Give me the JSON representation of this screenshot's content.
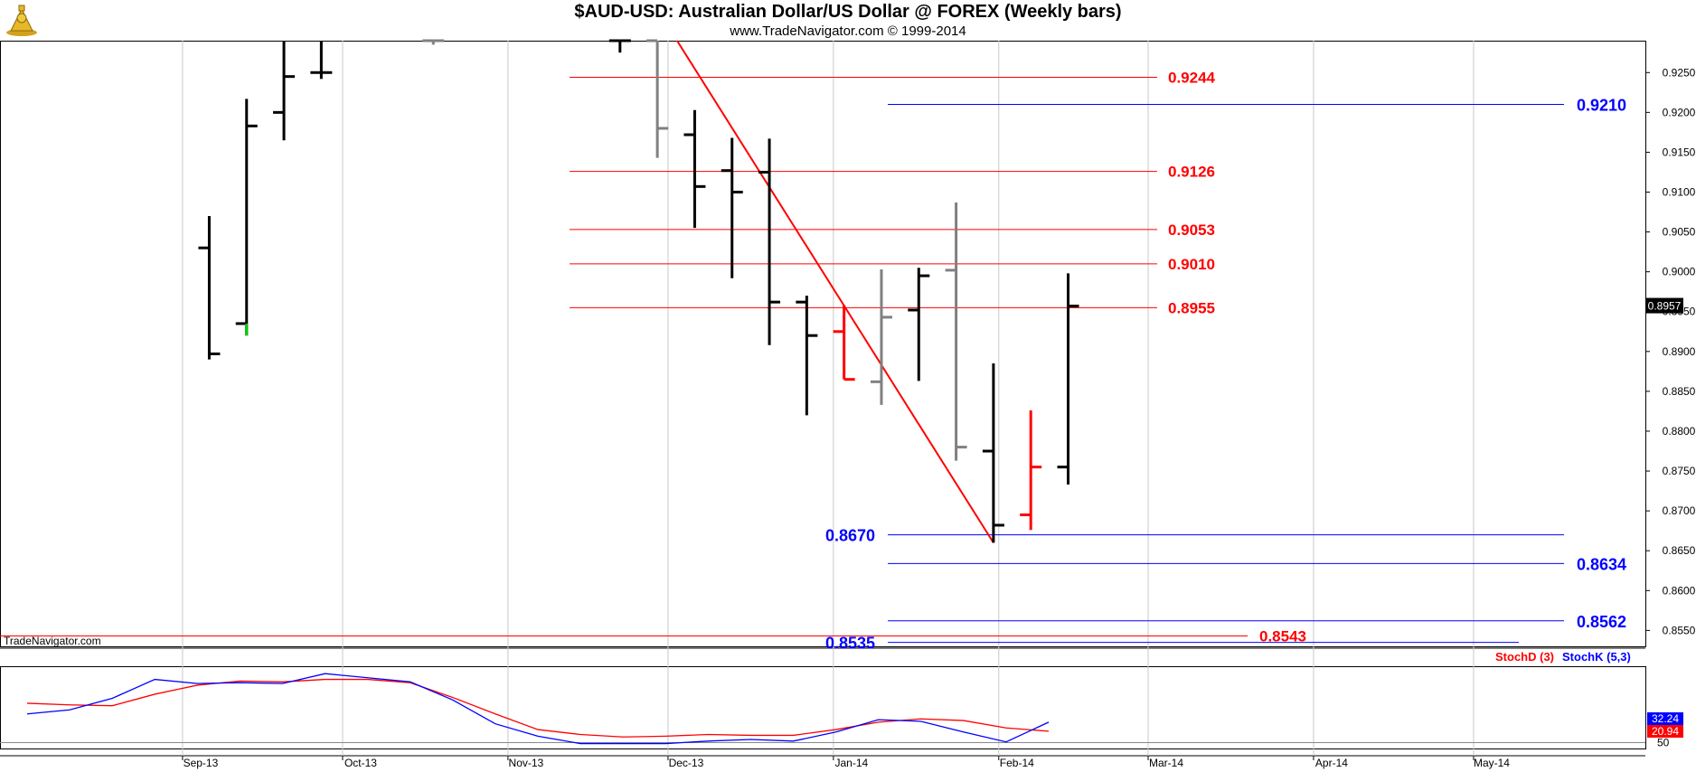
{
  "title": "$AUD-USD:  Australian Dollar/US Dollar @ FOREX  (Weekly bars)",
  "subtitle": "www.TradeNavigator.com © 1999-2014",
  "watermark": "TradeNavigator.com",
  "last_price_label": "0.8957",
  "colors": {
    "up": "#000000",
    "down_gray": "#808080",
    "red": "#ff0000",
    "blue": "#0000ff",
    "green": "#00cc00"
  },
  "chart_data": [
    {
      "type": "ohlc",
      "title": "$AUD-USD:  Australian Dollar/US Dollar @ FOREX  (Weekly bars)",
      "y_ticks": [
        "0.9250",
        "0.9200",
        "0.9150",
        "0.9100",
        "0.9050",
        "0.9000",
        "0.8950",
        "0.8900",
        "0.8850",
        "0.8800",
        "0.8750",
        "0.8700",
        "0.8650",
        "0.8600",
        "0.8550"
      ],
      "ylim": [
        0.853,
        0.929
      ],
      "x_ticks": [
        "Sep-13",
        "Oct-13",
        "Nov-13",
        "Dec-13",
        "Jan-14",
        "Feb-14",
        "Mar-14",
        "Apr-14",
        "May-14"
      ],
      "bars": [
        {
          "date": "2013-09-06",
          "open": 0.903,
          "high": 0.907,
          "low": 0.889,
          "close": 0.8897,
          "color": "black"
        },
        {
          "date": "2013-09-13",
          "open": 0.8935,
          "high": 0.9217,
          "low": 0.892,
          "close": 0.9183,
          "color": "black"
        },
        {
          "date": "2013-09-20",
          "open": 0.92,
          "high": 0.929,
          "low": 0.9165,
          "close": 0.9245,
          "color": "black"
        },
        {
          "date": "2013-09-27",
          "open": 0.925,
          "high": 0.929,
          "low": 0.9242,
          "close": 0.925,
          "color": "black"
        },
        {
          "date": "2013-10-18",
          "open": 0.929,
          "high": 0.929,
          "low": 0.9285,
          "close": 0.929,
          "color": "gray"
        },
        {
          "date": "2013-11-22",
          "open": 0.929,
          "high": 0.929,
          "low": 0.9275,
          "close": 0.929,
          "color": "black"
        },
        {
          "date": "2013-11-29",
          "open": 0.929,
          "high": 0.929,
          "low": 0.9143,
          "close": 0.918,
          "color": "gray"
        },
        {
          "date": "2013-12-06",
          "open": 0.9172,
          "high": 0.9203,
          "low": 0.9055,
          "close": 0.9107,
          "color": "black"
        },
        {
          "date": "2013-12-13",
          "open": 0.9127,
          "high": 0.9168,
          "low": 0.8992,
          "close": 0.91,
          "color": "black"
        },
        {
          "date": "2013-12-20",
          "open": 0.9125,
          "high": 0.9167,
          "low": 0.8908,
          "close": 0.8962,
          "color": "black"
        },
        {
          "date": "2013-12-27",
          "open": 0.8962,
          "high": 0.897,
          "low": 0.882,
          "close": 0.892,
          "color": "black"
        },
        {
          "date": "2014-01-03",
          "open": 0.8925,
          "high": 0.8958,
          "low": 0.8865,
          "close": 0.8865,
          "color": "red"
        },
        {
          "date": "2014-01-10",
          "open": 0.8862,
          "high": 0.9003,
          "low": 0.8833,
          "close": 0.8943,
          "color": "gray"
        },
        {
          "date": "2014-01-17",
          "open": 0.8952,
          "high": 0.9005,
          "low": 0.8863,
          "close": 0.8995,
          "color": "black"
        },
        {
          "date": "2014-01-24",
          "open": 0.9002,
          "high": 0.9087,
          "low": 0.8763,
          "close": 0.878,
          "color": "gray"
        },
        {
          "date": "2014-01-31",
          "open": 0.8775,
          "high": 0.8885,
          "low": 0.866,
          "close": 0.8682,
          "color": "black"
        },
        {
          "date": "2014-02-07",
          "open": 0.8695,
          "high": 0.8826,
          "low": 0.8676,
          "close": 0.8755,
          "color": "red"
        },
        {
          "date": "2014-02-14",
          "open": 0.8755,
          "high": 0.8998,
          "low": 0.8733,
          "close": 0.8957,
          "color": "black"
        }
      ],
      "red_levels": [
        0.9244,
        0.9126,
        0.9053,
        0.901,
        0.8955,
        0.8543
      ],
      "blue_levels": [
        0.921,
        0.867,
        0.8634,
        0.8562,
        0.8535
      ],
      "level_labels": {
        "red": [
          "0.9244",
          "0.9126",
          "0.9053",
          "0.9010",
          "0.8955",
          "0.8543"
        ],
        "blue": [
          "0.9210",
          "0.8670",
          "0.8634",
          "0.8562",
          "0.8535"
        ]
      },
      "trendline": {
        "from": {
          "date": "2013-12-01",
          "value": 0.929
        },
        "to": {
          "date": "2014-01-31",
          "value": 0.866
        },
        "color": "red"
      }
    },
    {
      "type": "line",
      "legend": [
        "StochD (3)",
        "StochK (5,3)"
      ],
      "y_ticks": [
        "50"
      ],
      "ylim": [
        0,
        100
      ],
      "value_labels": [
        "32.24",
        "20.94"
      ],
      "series": [
        {
          "name": "StochD (3)",
          "color": "red",
          "values": [
            55,
            53,
            52,
            66,
            77,
            82,
            81,
            84,
            84,
            80,
            62,
            42,
            23,
            17,
            14,
            15,
            17,
            16,
            16,
            23,
            32,
            36,
            34,
            25,
            21
          ]
        },
        {
          "name": "StochK (5,3)",
          "color": "blue",
          "values": [
            42,
            47,
            61,
            84,
            79,
            80,
            79,
            91,
            86,
            81,
            59,
            30,
            15,
            6,
            6,
            6,
            9,
            11,
            9,
            20,
            35,
            33,
            20,
            8,
            32
          ]
        }
      ]
    }
  ]
}
